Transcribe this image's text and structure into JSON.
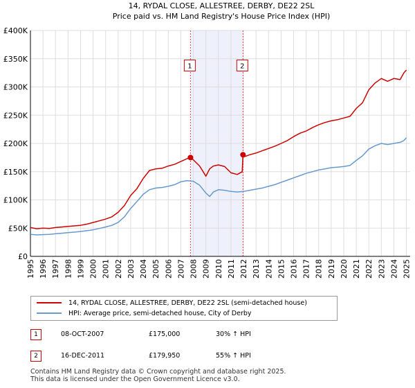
{
  "chart_data": {
    "type": "line",
    "title": "14, RYDAL CLOSE, ALLESTREE, DERBY, DE22 2SL",
    "subtitle": "Price paid vs. HM Land Registry's House Price Index (HPI)",
    "xlabel": "",
    "ylabel": "",
    "xlim": [
      1995,
      2025.3
    ],
    "ylim": [
      0,
      400000
    ],
    "y_ticks": [
      0,
      50000,
      100000,
      150000,
      200000,
      250000,
      300000,
      350000,
      400000
    ],
    "y_tick_labels": [
      "£0",
      "£50K",
      "£100K",
      "£150K",
      "£200K",
      "£250K",
      "£300K",
      "£350K",
      "£400K"
    ],
    "x_ticks": [
      1995,
      1996,
      1997,
      1998,
      1999,
      2000,
      2001,
      2002,
      2003,
      2004,
      2005,
      2006,
      2007,
      2008,
      2009,
      2010,
      2011,
      2012,
      2013,
      2014,
      2015,
      2016,
      2017,
      2018,
      2019,
      2020,
      2021,
      2022,
      2023,
      2024,
      2025
    ],
    "x_tick_labels": [
      "1995",
      "1996",
      "1997",
      "1998",
      "1999",
      "2000",
      "2001",
      "2002",
      "2003",
      "2004",
      "2005",
      "2006",
      "2007",
      "2008",
      "2009",
      "2010",
      "2011",
      "2012",
      "2013",
      "2014",
      "2015",
      "2016",
      "2017",
      "2018",
      "2019",
      "2020",
      "2021",
      "2022",
      "2023",
      "2024",
      "2025"
    ],
    "grid": true,
    "shaded_region": [
      2007.77,
      2011.96
    ],
    "series": [
      {
        "name": "14, RYDAL CLOSE, ALLESTREE, DERBY, DE22 2SL (semi-detached house)",
        "color": "#cc0000",
        "x": [
          1995.0,
          1995.5,
          1996.0,
          1996.5,
          1997.0,
          1997.5,
          1998.0,
          1998.5,
          1999.0,
          1999.5,
          2000.0,
          2000.5,
          2001.0,
          2001.5,
          2002.0,
          2002.5,
          2003.0,
          2003.5,
          2004.0,
          2004.5,
          2005.0,
          2005.5,
          2006.0,
          2006.5,
          2007.0,
          2007.5,
          2007.77,
          2008.0,
          2008.5,
          2009.0,
          2009.3,
          2009.6,
          2010.0,
          2010.5,
          2011.0,
          2011.5,
          2011.9,
          2011.96,
          2012.0,
          2012.5,
          2013.0,
          2013.5,
          2014.0,
          2014.5,
          2015.0,
          2015.5,
          2016.0,
          2016.5,
          2017.0,
          2017.5,
          2018.0,
          2018.5,
          2019.0,
          2019.5,
          2020.0,
          2020.5,
          2021.0,
          2021.5,
          2022.0,
          2022.5,
          2023.0,
          2023.5,
          2024.0,
          2024.5,
          2024.8,
          2025.0
        ],
        "values": [
          51000,
          49000,
          50000,
          49500,
          51000,
          52000,
          53000,
          54000,
          55000,
          57000,
          60000,
          63000,
          66000,
          70000,
          78000,
          90000,
          108000,
          120000,
          138000,
          152000,
          155000,
          156000,
          160000,
          163000,
          168000,
          173000,
          175000,
          171000,
          160000,
          142000,
          155000,
          160000,
          162000,
          159000,
          148000,
          145000,
          150000,
          179950,
          176000,
          180000,
          183000,
          187000,
          191000,
          195000,
          200000,
          205000,
          212000,
          218000,
          222000,
          228000,
          233000,
          237000,
          240000,
          242000,
          245000,
          248000,
          262000,
          272000,
          295000,
          307000,
          315000,
          310000,
          315000,
          313000,
          325000,
          330000
        ]
      },
      {
        "name": "HPI: Average price, semi-detached house, City of Derby",
        "color": "#6699cc",
        "x": [
          1995.0,
          1995.5,
          1996.0,
          1996.5,
          1997.0,
          1997.5,
          1998.0,
          1998.5,
          1999.0,
          1999.5,
          2000.0,
          2000.5,
          2001.0,
          2001.5,
          2002.0,
          2002.5,
          2003.0,
          2003.5,
          2004.0,
          2004.5,
          2005.0,
          2005.5,
          2006.0,
          2006.5,
          2007.0,
          2007.5,
          2008.0,
          2008.5,
          2009.0,
          2009.3,
          2009.6,
          2010.0,
          2010.5,
          2011.0,
          2011.5,
          2012.0,
          2012.5,
          2013.0,
          2013.5,
          2014.0,
          2014.5,
          2015.0,
          2015.5,
          2016.0,
          2016.5,
          2017.0,
          2017.5,
          2018.0,
          2018.5,
          2019.0,
          2019.5,
          2020.0,
          2020.5,
          2021.0,
          2021.5,
          2022.0,
          2022.5,
          2023.0,
          2023.5,
          2024.0,
          2024.5,
          2024.8,
          2025.0
        ],
        "values": [
          39000,
          38000,
          38500,
          39000,
          40000,
          41000,
          42000,
          43000,
          44000,
          45500,
          47000,
          49500,
          52000,
          55000,
          60000,
          70000,
          85000,
          97000,
          110000,
          118000,
          121000,
          122000,
          124000,
          127000,
          132000,
          134000,
          133000,
          126000,
          112000,
          106000,
          114000,
          118000,
          117000,
          115000,
          114000,
          115000,
          117000,
          119000,
          121000,
          124000,
          127000,
          131000,
          135000,
          139000,
          143000,
          147000,
          150000,
          153000,
          155000,
          157000,
          158000,
          159000,
          161000,
          170000,
          178000,
          190000,
          196000,
          200000,
          198000,
          200000,
          202000,
          205000,
          210000
        ]
      }
    ],
    "sale_markers": [
      {
        "label": "1",
        "x": 2007.77,
        "value": 175000
      },
      {
        "label": "2",
        "x": 2011.96,
        "value": 179950
      }
    ]
  },
  "legend": {
    "items": [
      {
        "label": "14, RYDAL CLOSE, ALLESTREE, DERBY, DE22 2SL (semi-detached house)",
        "color": "#cc0000"
      },
      {
        "label": "HPI: Average price, semi-detached house, City of Derby",
        "color": "#6699cc"
      }
    ]
  },
  "sales": [
    {
      "num": "1",
      "date": "08-OCT-2007",
      "price": "£175,000",
      "hpi": "30% ↑ HPI"
    },
    {
      "num": "2",
      "date": "16-DEC-2011",
      "price": "£179,950",
      "hpi": "55% ↑ HPI"
    }
  ],
  "footer": {
    "line1": "Contains HM Land Registry data © Crown copyright and database right 2025.",
    "line2": "This data is licensed under the Open Government Licence v3.0."
  },
  "colors": {
    "grid": "#dddddd",
    "shade": "#eef1fb",
    "price_line": "#cc0000",
    "hpi_line": "#6699cc"
  }
}
